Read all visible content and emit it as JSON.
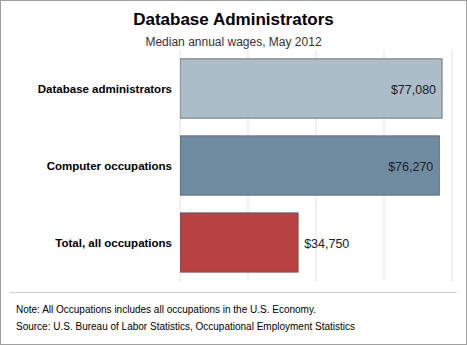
{
  "chart_data": {
    "type": "bar",
    "orientation": "horizontal",
    "title": "Database Administrators",
    "subtitle": "Median annual wages, May 2012",
    "categories": [
      "Database administrators",
      "Computer occupations",
      "Total, all occupations"
    ],
    "values": [
      77080,
      76270,
      34750
    ],
    "value_labels": [
      "$77,080",
      "$76,270",
      "$34,750"
    ],
    "colors": [
      "#aabdc9",
      "#6f8ba0",
      "#b84141"
    ],
    "xlim": [
      0,
      80000
    ],
    "xticks": [
      0,
      20000,
      40000,
      60000,
      80000
    ],
    "grid": true,
    "tick_labels": false,
    "data_labels": true,
    "note": "Note: All Occupations includes all occupations in the U.S. Economy.",
    "source": "Source: U.S. Bureau of Labor Statistics, Occupational Employment Statistics"
  }
}
